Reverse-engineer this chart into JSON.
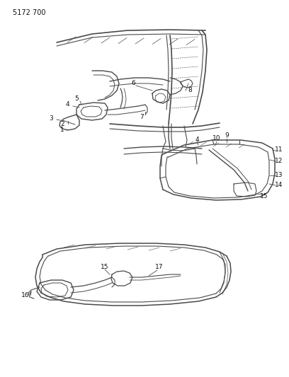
{
  "page_id": "5172 700",
  "bg_color": "#ffffff",
  "line_color": "#4a4a4a",
  "label_color": "#111111",
  "figsize": [
    4.08,
    5.33
  ],
  "dpi": 100
}
